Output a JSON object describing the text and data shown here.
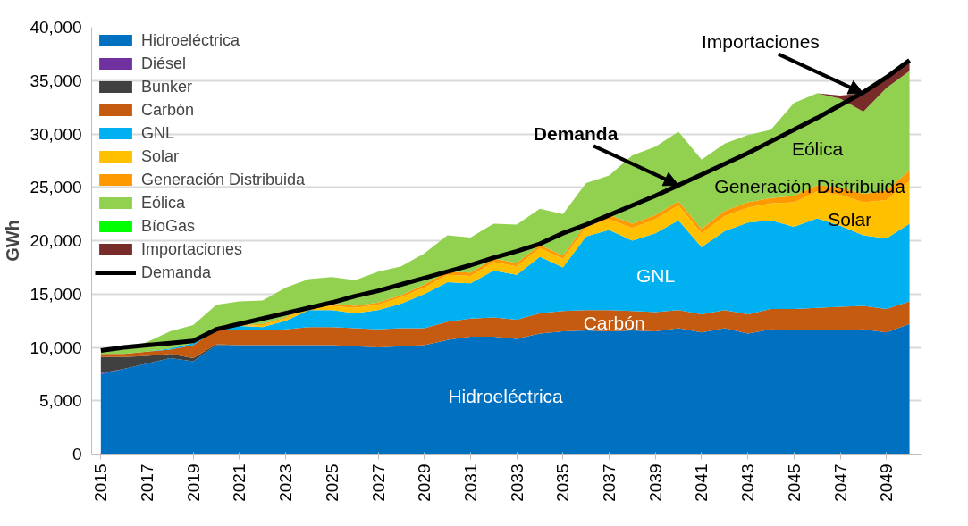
{
  "chart_data": {
    "type": "area",
    "stacked": true,
    "ylabel": "GWh",
    "x": [
      2015,
      2016,
      2017,
      2018,
      2019,
      2020,
      2021,
      2022,
      2023,
      2024,
      2025,
      2026,
      2027,
      2028,
      2029,
      2030,
      2031,
      2032,
      2033,
      2034,
      2035,
      2036,
      2037,
      2038,
      2039,
      2040,
      2041,
      2042,
      2043,
      2044,
      2045,
      2046,
      2047,
      2048,
      2049,
      2050
    ],
    "xlim": [
      2014.6,
      2050.5
    ],
    "ylim": [
      0,
      40000
    ],
    "xticks": [
      2015,
      2017,
      2019,
      2021,
      2023,
      2025,
      2027,
      2029,
      2031,
      2033,
      2035,
      2037,
      2039,
      2041,
      2043,
      2045,
      2047,
      2049
    ],
    "yticks": [
      0,
      {
        "value": 5000,
        "label": "5,000"
      },
      {
        "value": 10000,
        "label": "10,000"
      },
      {
        "value": 15000,
        "label": "15,000"
      },
      {
        "value": 20000,
        "label": "20,000"
      },
      {
        "value": 25000,
        "label": "25,000"
      },
      {
        "value": 30000,
        "label": "30,000"
      },
      {
        "value": 35000,
        "label": "35,000"
      },
      {
        "value": 40000,
        "label": "40,000"
      }
    ],
    "grid": "y",
    "legend": "top left",
    "series": [
      {
        "name": "Hidroeléctrica",
        "color": "#0070c0",
        "values": [
          7500,
          8000,
          8500,
          9000,
          8700,
          10200,
          10200,
          10200,
          10200,
          10200,
          10200,
          10100,
          10000,
          10100,
          10200,
          10700,
          11000,
          11000,
          10800,
          11300,
          11500,
          11600,
          11500,
          11600,
          11500,
          11800,
          11400,
          11800,
          11300,
          11700,
          11600,
          11600,
          11600,
          11700,
          11400,
          12200
        ]
      },
      {
        "name": "Diésel",
        "color": "#7030a0",
        "values": [
          100,
          0,
          0,
          0,
          0,
          0,
          0,
          0,
          0,
          0,
          0,
          0,
          0,
          0,
          0,
          0,
          0,
          0,
          0,
          0,
          0,
          0,
          0,
          0,
          0,
          0,
          0,
          0,
          0,
          0,
          0,
          0,
          0,
          0,
          0,
          0
        ]
      },
      {
        "name": "Bunker",
        "color": "#404040",
        "values": [
          1500,
          1100,
          700,
          400,
          300,
          100,
          0,
          0,
          0,
          0,
          0,
          0,
          0,
          0,
          0,
          0,
          0,
          0,
          0,
          0,
          0,
          0,
          0,
          0,
          0,
          0,
          0,
          0,
          0,
          0,
          0,
          0,
          0,
          0,
          0,
          0
        ]
      },
      {
        "name": "Carbón",
        "color": "#c55a11",
        "values": [
          300,
          300,
          400,
          400,
          1200,
          1400,
          1400,
          1400,
          1500,
          1700,
          1700,
          1700,
          1700,
          1700,
          1600,
          1700,
          1700,
          1800,
          1800,
          1900,
          1900,
          1900,
          2000,
          1800,
          1800,
          1700,
          1700,
          1700,
          1800,
          1900,
          2000,
          2100,
          2200,
          2200,
          2200,
          2100
        ]
      },
      {
        "name": "GNL",
        "color": "#00b0f0",
        "values": [
          0,
          0,
          0,
          100,
          200,
          200,
          400,
          300,
          800,
          1600,
          1600,
          1400,
          1800,
          2300,
          3200,
          3700,
          3300,
          4400,
          4200,
          5300,
          4100,
          6900,
          7500,
          6600,
          7400,
          8400,
          6300,
          7400,
          8600,
          8300,
          7700,
          8400,
          7600,
          6600,
          6600,
          7300
        ]
      },
      {
        "name": "Solar",
        "color": "#ffc000",
        "values": [
          0,
          0,
          0,
          0,
          0,
          0,
          0,
          200,
          200,
          300,
          400,
          500,
          500,
          600,
          600,
          700,
          700,
          800,
          800,
          800,
          800,
          900,
          1000,
          1200,
          1300,
          1400,
          1300,
          1400,
          1400,
          1600,
          2300,
          2500,
          2900,
          3100,
          3600,
          4000
        ]
      },
      {
        "name": "Generación Distribuida",
        "color": "#ff9900",
        "values": [
          0,
          0,
          0,
          0,
          0,
          0,
          100,
          100,
          100,
          200,
          200,
          200,
          200,
          200,
          300,
          300,
          300,
          300,
          300,
          300,
          300,
          300,
          400,
          400,
          400,
          400,
          400,
          500,
          500,
          500,
          600,
          600,
          700,
          800,
          900,
          1000
        ]
      },
      {
        "name": "Eólica",
        "color": "#92d050",
        "values": [
          200,
          400,
          900,
          1600,
          1700,
          2100,
          2200,
          2200,
          2800,
          2400,
          2500,
          2400,
          2900,
          2700,
          2900,
          3400,
          3300,
          3300,
          3600,
          3400,
          3900,
          3800,
          3700,
          6400,
          6400,
          6500,
          6500,
          6300,
          6300,
          6400,
          8700,
          8600,
          8300,
          7700,
          9600,
          9300
        ]
      },
      {
        "name": "BíoGas",
        "color": "#00ff00",
        "values": [
          null,
          null,
          null,
          null,
          null,
          null,
          null,
          null,
          null,
          null,
          null,
          null,
          null,
          null,
          null,
          null,
          null,
          null,
          null,
          null,
          null,
          null,
          null,
          null,
          null,
          null,
          null,
          null,
          null,
          null,
          null,
          null,
          null,
          null,
          null,
          null
        ]
      },
      {
        "name": "Importaciones",
        "color": "#772c2a",
        "values": [
          0,
          0,
          0,
          0,
          0,
          0,
          0,
          0,
          0,
          0,
          0,
          0,
          0,
          0,
          0,
          0,
          0,
          0,
          0,
          0,
          0,
          0,
          0,
          0,
          0,
          0,
          0,
          0,
          0,
          0,
          0,
          0,
          300,
          1700,
          1000,
          800
        ]
      },
      {
        "name": "Demanda",
        "type": "line",
        "color": "#000000",
        "values": [
          9700,
          10000,
          10200,
          10400,
          10600,
          11700,
          12200,
          12700,
          13200,
          13700,
          14200,
          14800,
          15300,
          15900,
          16500,
          17100,
          17700,
          18400,
          19000,
          19700,
          20700,
          21500,
          22400,
          23300,
          24200,
          25200,
          26200,
          27200,
          28200,
          29300,
          30400,
          31500,
          32700,
          33900,
          35300,
          36900
        ]
      }
    ],
    "annotations": [
      "Hidroeléctrica",
      "Carbón",
      "GNL",
      "Solar",
      "Generación Distribuida",
      "Eólica",
      {
        "text": "Demanda",
        "x": 2040,
        "y": 25200
      },
      {
        "text": "Importaciones",
        "x": 2048,
        "y": 33800
      }
    ]
  }
}
